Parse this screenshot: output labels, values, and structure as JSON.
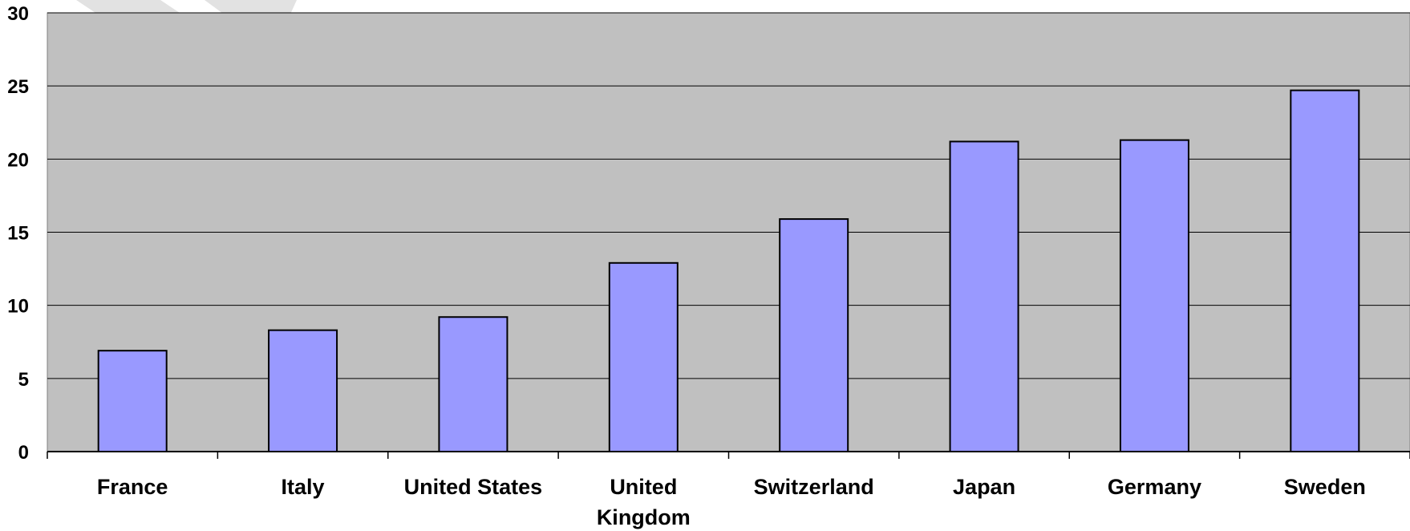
{
  "chart_data": {
    "type": "bar",
    "title": "",
    "xlabel": "",
    "ylabel": "",
    "categories": [
      "France",
      "Italy",
      "United States",
      "United Kingdom",
      "Switzerland",
      "Japan",
      "Germany",
      "Sweden"
    ],
    "category_label_lines": [
      [
        "France"
      ],
      [
        "Italy"
      ],
      [
        "United States"
      ],
      [
        "United",
        "Kingdom"
      ],
      [
        "Switzerland"
      ],
      [
        "Japan"
      ],
      [
        "Germany"
      ],
      [
        "Sweden"
      ]
    ],
    "values": [
      6.9,
      8.3,
      9.2,
      12.9,
      15.9,
      21.2,
      21.3,
      24.7
    ],
    "ylim": [
      0,
      30
    ],
    "yticks": [
      0,
      5,
      10,
      15,
      20,
      25,
      30
    ],
    "grid": true,
    "legend": "none",
    "colors": {
      "bar_fill": "#9999ff",
      "bar_stroke": "#000000",
      "plot_background": "#c0c0c0",
      "gridline": "#000000",
      "watermark": "#e2e2e2"
    }
  }
}
